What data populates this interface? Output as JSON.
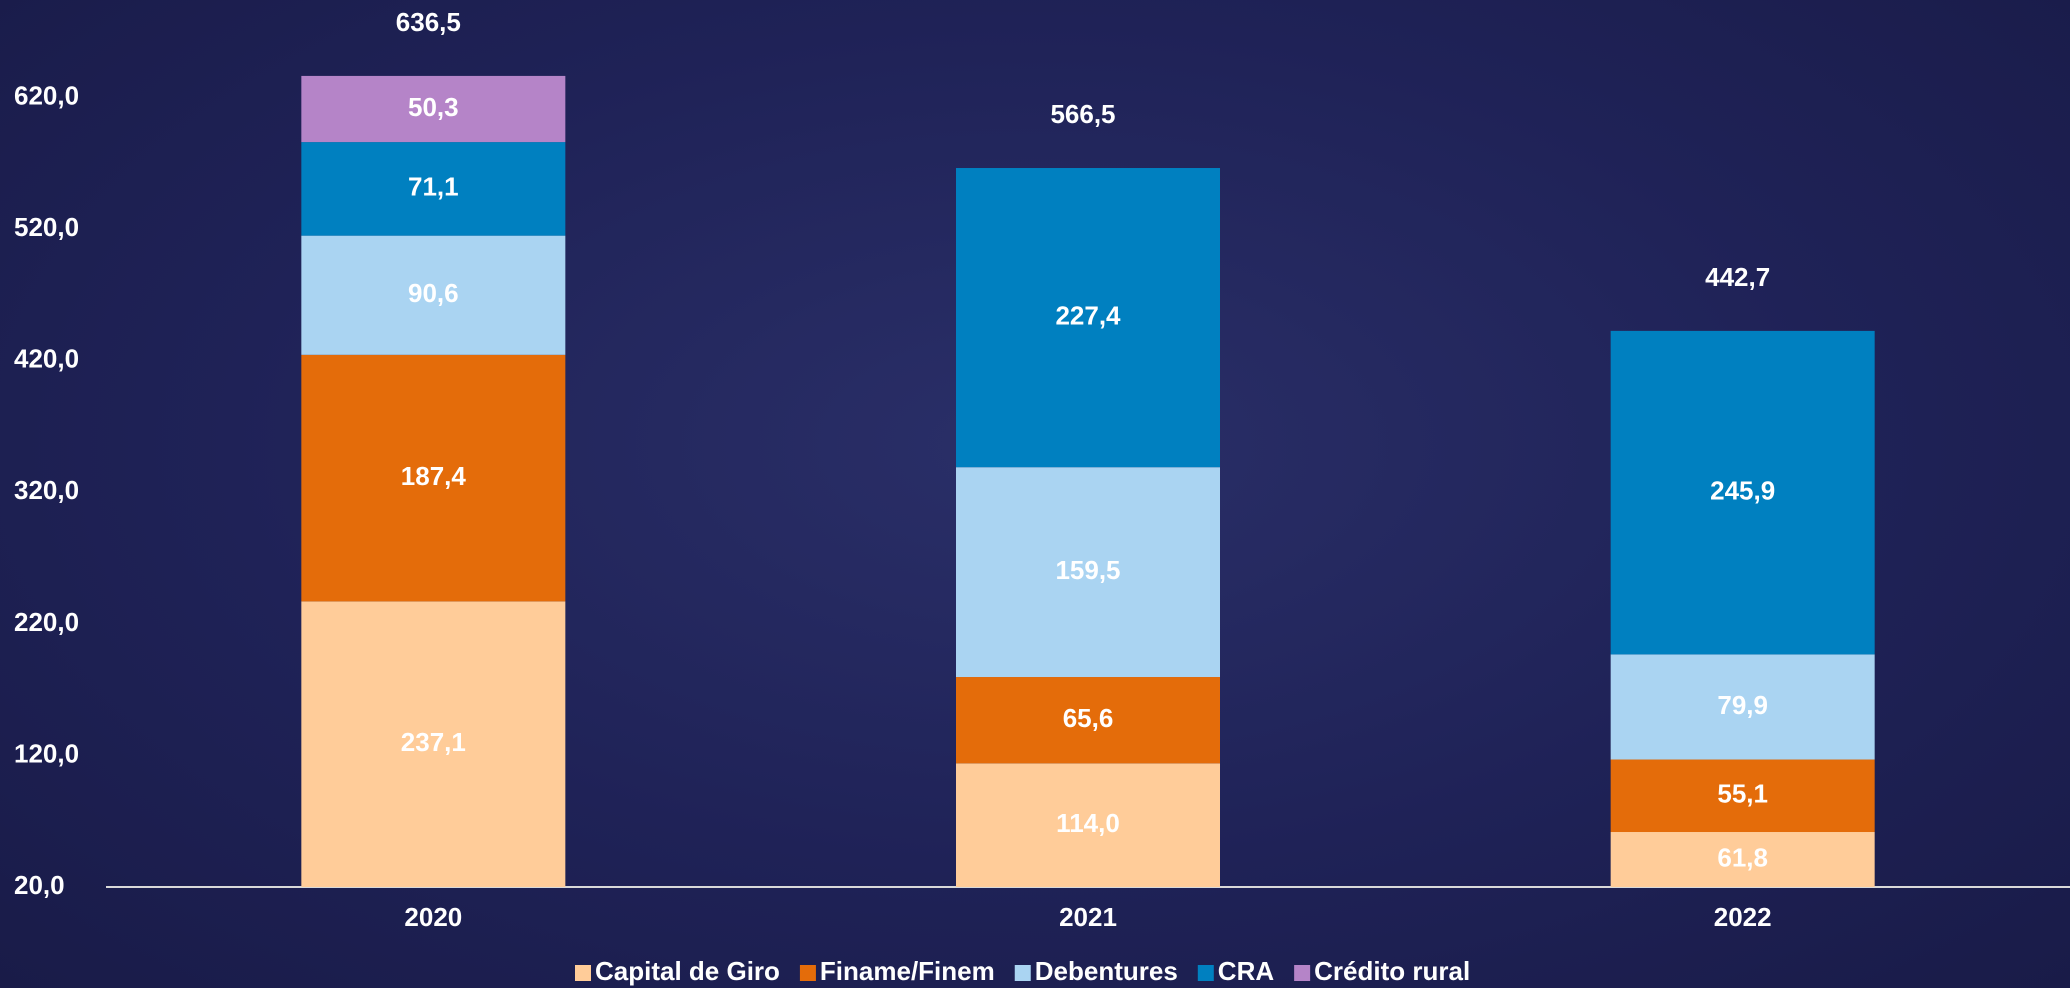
{
  "chart_data": {
    "type": "stacked_bar",
    "categories": [
      "2020",
      "2021",
      "2022"
    ],
    "series": [
      {
        "name": "Capital de Giro",
        "color": "#ffcc99",
        "values": [
          237.1,
          114.0,
          61.8
        ],
        "value_labels": [
          "237,1",
          "114,0",
          "61,8"
        ]
      },
      {
        "name": "Finame/Finem",
        "color": "#e46c0a",
        "values": [
          187.4,
          65.6,
          55.1
        ],
        "value_labels": [
          "187,4",
          "65,6",
          "55,1"
        ]
      },
      {
        "name": "Debentures",
        "color": "#aad4f2",
        "values": [
          90.6,
          159.5,
          79.9
        ],
        "value_labels": [
          "90,6",
          "159,5",
          "79,9"
        ]
      },
      {
        "name": "CRA",
        "color": "#0080c0",
        "values": [
          71.1,
          227.4,
          245.9
        ],
        "value_labels": [
          "71,1",
          "227,4",
          "245,9"
        ]
      },
      {
        "name": "Crédito rural",
        "color": "#b584c8",
        "values": [
          50.3,
          null,
          null
        ],
        "value_labels": [
          "50,3",
          null,
          null
        ]
      }
    ],
    "totals": [
      636.5,
      566.5,
      442.7
    ],
    "total_labels": [
      "636,5",
      "566,5",
      "442,7"
    ],
    "ylim": [
      20,
      660
    ],
    "yticks": [
      {
        "value": 20,
        "label": "20,0"
      },
      {
        "value": 120,
        "label": "120,0"
      },
      {
        "value": 220,
        "label": "220,0"
      },
      {
        "value": 320,
        "label": "320,0"
      },
      {
        "value": 420,
        "label": "420,0"
      },
      {
        "value": 520,
        "label": "520,0"
      },
      {
        "value": 620,
        "label": "620,0"
      }
    ],
    "grid": false,
    "legend": "bottom"
  }
}
